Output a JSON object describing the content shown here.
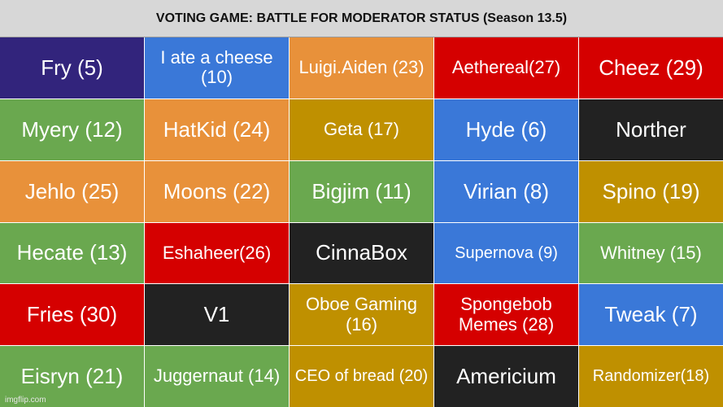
{
  "header": {
    "title": "VOTING GAME: BATTLE FOR MODERATOR STATUS (Season 13.5)"
  },
  "colors": {
    "purple": "#32247c",
    "blue": "#3a78d8",
    "orange": "#e8913a",
    "red": "#d50000",
    "green": "#6aa84f",
    "gold": "#bf9000",
    "black": "#222222"
  },
  "cells": [
    {
      "label": "Fry (5)",
      "color": "purple"
    },
    {
      "label": "I ate a cheese (10)",
      "color": "blue"
    },
    {
      "label": "Luigi.Aiden (23)",
      "color": "orange"
    },
    {
      "label": "Aethereal(27)",
      "color": "red"
    },
    {
      "label": "Cheez (29)",
      "color": "red"
    },
    {
      "label": "Myery (12)",
      "color": "green"
    },
    {
      "label": "HatKid (24)",
      "color": "orange"
    },
    {
      "label": "Geta (17)",
      "color": "gold"
    },
    {
      "label": "Hyde (6)",
      "color": "blue"
    },
    {
      "label": "Norther",
      "color": "black"
    },
    {
      "label": "Jehlo (25)",
      "color": "orange"
    },
    {
      "label": "Moons (22)",
      "color": "orange"
    },
    {
      "label": "Bigjim (11)",
      "color": "green"
    },
    {
      "label": "Virian (8)",
      "color": "blue"
    },
    {
      "label": "Spino (19)",
      "color": "gold"
    },
    {
      "label": "Hecate (13)",
      "color": "green"
    },
    {
      "label": "Eshaheer(26)",
      "color": "red"
    },
    {
      "label": "CinnaBox",
      "color": "black"
    },
    {
      "label": "Supernova (9)",
      "color": "blue"
    },
    {
      "label": "Whitney (15)",
      "color": "green"
    },
    {
      "label": "Fries (30)",
      "color": "red"
    },
    {
      "label": "V1",
      "color": "black"
    },
    {
      "label": "Oboe Gaming (16)",
      "color": "gold"
    },
    {
      "label": "Spongebob Memes (28)",
      "color": "red"
    },
    {
      "label": "Tweak (7)",
      "color": "blue"
    },
    {
      "label": "Eisryn (21)",
      "color": "green"
    },
    {
      "label": "Juggernaut (14)",
      "color": "green"
    },
    {
      "label": "CEO of bread (20)",
      "color": "gold"
    },
    {
      "label": "Americium",
      "color": "black"
    },
    {
      "label": "Randomizer(18)",
      "color": "gold"
    }
  ],
  "watermark": "imgflip.com"
}
